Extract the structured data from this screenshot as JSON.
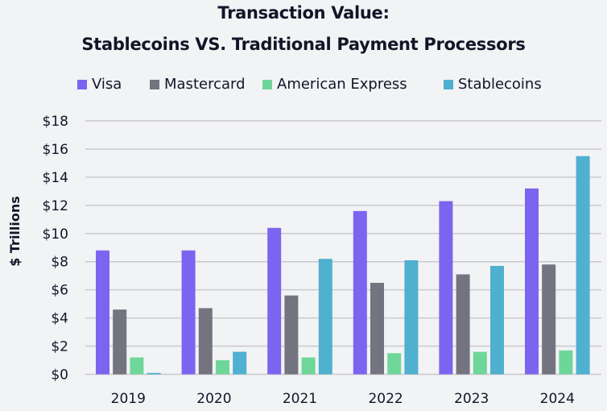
{
  "chart_data": {
    "type": "bar",
    "title": "Transaction Value:",
    "subtitle": "Stablecoins VS. Traditional Payment Processors",
    "xlabel": "",
    "ylabel": "$ Trillions",
    "ylim": [
      0,
      18
    ],
    "yticks": [
      0,
      2,
      4,
      6,
      8,
      10,
      12,
      14,
      16,
      18
    ],
    "ytick_labels": [
      "$0",
      "$2",
      "$4",
      "$6",
      "$8",
      "$10",
      "$12",
      "$14",
      "$16",
      "$18"
    ],
    "grid": true,
    "legend_position": "top",
    "categories": [
      "2019",
      "2020",
      "2021",
      "2022",
      "2023",
      "2024"
    ],
    "series": [
      {
        "name": "Visa",
        "color": "#7b65f0",
        "values": [
          8.8,
          8.8,
          10.4,
          11.6,
          12.3,
          13.2
        ]
      },
      {
        "name": "Mastercard",
        "color": "#73747f",
        "values": [
          4.6,
          4.7,
          5.6,
          6.5,
          7.1,
          7.8
        ]
      },
      {
        "name": "American Express",
        "color": "#6fd69a",
        "values": [
          1.2,
          1.0,
          1.2,
          1.5,
          1.6,
          1.7
        ]
      },
      {
        "name": "Stablecoins",
        "color": "#4fb0cf",
        "values": [
          0.1,
          1.6,
          8.2,
          8.1,
          7.7,
          15.5
        ]
      }
    ]
  }
}
